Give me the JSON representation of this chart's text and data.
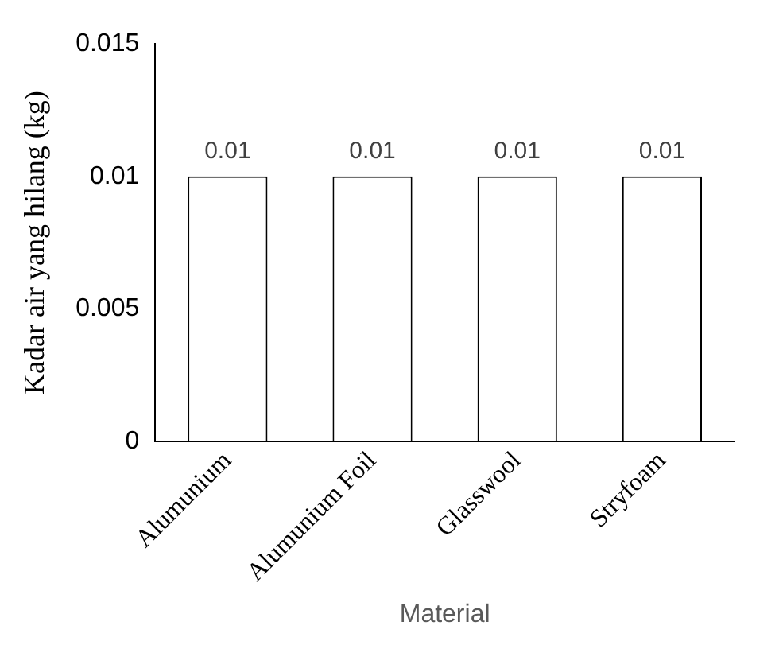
{
  "chart_data": {
    "type": "bar",
    "xlabel": "Material",
    "ylabel": "Kadar air yang hilang (kg)",
    "categories": [
      "Alumunium",
      "Alumunium Foil",
      "Glasswool",
      "Stryfoam"
    ],
    "values": [
      0.01,
      0.01,
      0.01,
      0.01
    ],
    "color": "#ffffff",
    "ylim": [
      0,
      0.015
    ],
    "yticks": [
      0,
      0.005,
      0.01,
      0.015
    ],
    "grid": false,
    "legend": false,
    "data_labels": true
  }
}
